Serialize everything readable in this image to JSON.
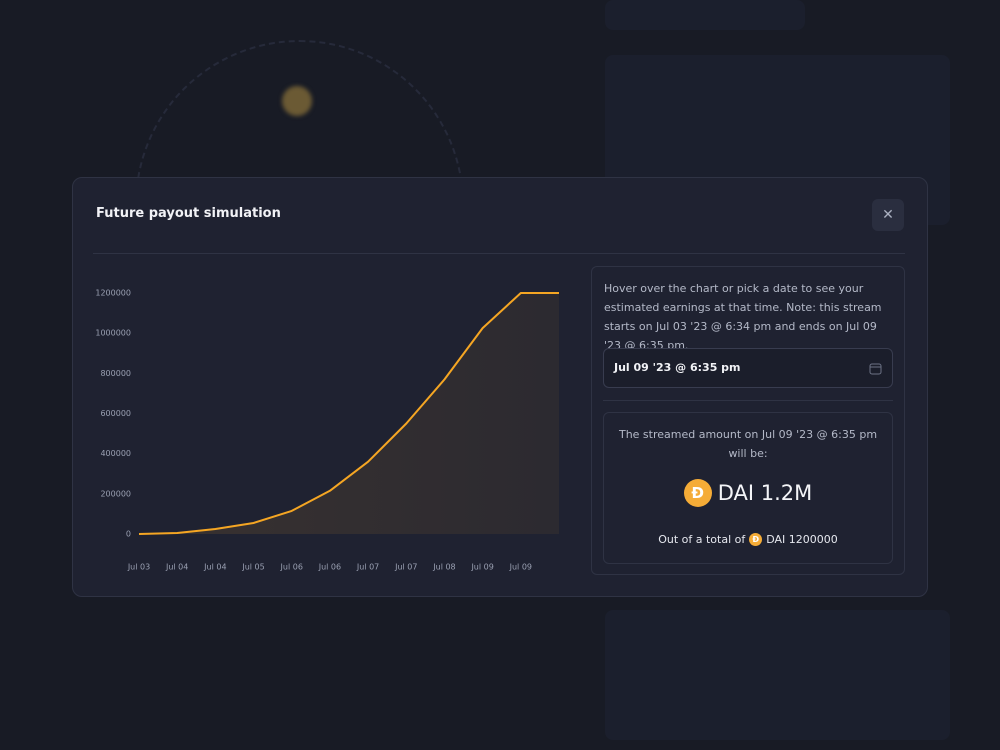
{
  "modal": {
    "title": "Future payout simulation"
  },
  "panel": {
    "description": "Hover over the chart or pick a date to see your estimated earnings at that time. Note: this stream starts on Jul 03 '23 @ 6:34 pm and ends on Jul 09 '23 @ 6:35 pm.",
    "date": "Jul 09 '23 @ 6:35 pm",
    "result_text": "The streamed amount on Jul 09 '23 @ 6:35 pm will be:",
    "amount": "DAI 1.2M",
    "total_label": "Out of a total of",
    "total": "DAI 1200000"
  },
  "chart_data": {
    "type": "area",
    "categories": [
      "Jul 03",
      "Jul 04",
      "Jul 04",
      "Jul 05",
      "Jul 06",
      "Jul 06",
      "Jul 07",
      "Jul 07",
      "Jul 08",
      "Jul 09",
      "Jul 09",
      null
    ],
    "values": [
      0,
      5000,
      25000,
      55000,
      115000,
      215000,
      360000,
      550000,
      770000,
      1025000,
      1200000,
      1200000
    ],
    "color": "#f5a623",
    "ylim": [
      0,
      1200000
    ],
    "yticks": [
      0,
      200000,
      400000,
      600000,
      800000,
      1000000,
      1200000
    ],
    "grid": false
  }
}
